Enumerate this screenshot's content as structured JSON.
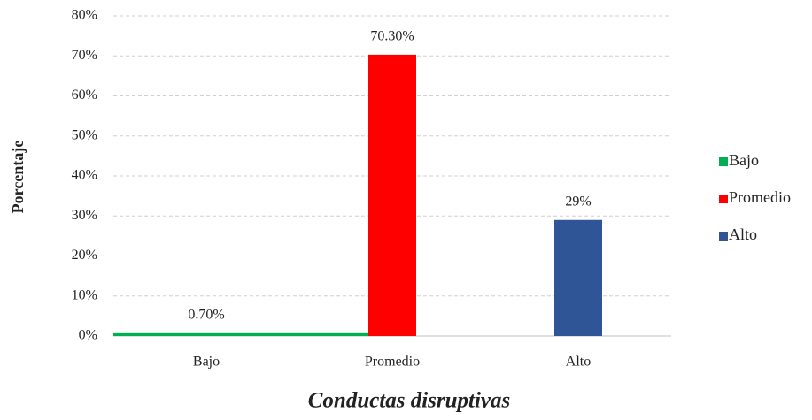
{
  "chart_data": {
    "type": "bar",
    "xlabel": "Conductas disruptivas",
    "ylabel": "Porcentaje",
    "categories": [
      "Bajo",
      "Promedio",
      "Alto"
    ],
    "series": [
      {
        "name": "Bajo",
        "color": "#00b050",
        "values": [
          0.7,
          null,
          null
        ],
        "value_labels": [
          "0.70%",
          null,
          null
        ]
      },
      {
        "name": "Promedio",
        "color": "#ff0000",
        "values": [
          null,
          70.3,
          null
        ],
        "value_labels": [
          null,
          "70.30%",
          null
        ]
      },
      {
        "name": "Alto",
        "color": "#2f5597",
        "values": [
          null,
          null,
          29
        ],
        "value_labels": [
          null,
          null,
          "29%"
        ]
      }
    ],
    "ylim": [
      0,
      80
    ],
    "yticks": [
      {
        "value": 0,
        "label": "0%"
      },
      {
        "value": 10,
        "label": "10%"
      },
      {
        "value": 20,
        "label": "20%"
      },
      {
        "value": 30,
        "label": "30%"
      },
      {
        "value": 40,
        "label": "40%"
      },
      {
        "value": 50,
        "label": "50%"
      },
      {
        "value": 60,
        "label": "60%"
      },
      {
        "value": 70,
        "label": "70%"
      },
      {
        "value": 80,
        "label": "80%"
      }
    ],
    "grid": true,
    "legend": "right"
  }
}
